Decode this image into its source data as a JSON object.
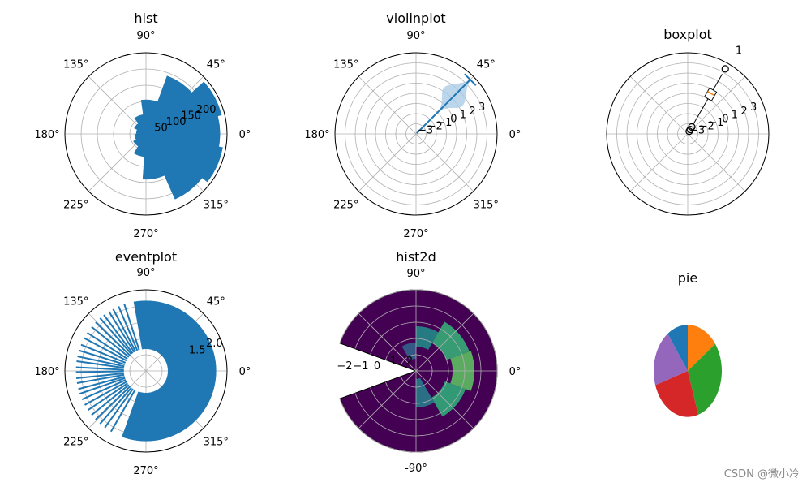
{
  "watermark": "CSDN @微小冷",
  "colors": {
    "blue": "#1f77b4",
    "orange": "#ff7f0e",
    "green": "#2ca02c",
    "red": "#d62728",
    "purple": "#9467bd",
    "grid": "#b0b0b0",
    "violin_fill": "#a6c8e6",
    "hist2d_bg": "#440154"
  },
  "angle_labels": [
    "0°",
    "45°",
    "90°",
    "135°",
    "180°",
    "225°",
    "270°",
    "315°"
  ],
  "chart_data": [
    {
      "type": "bar",
      "title": "hist",
      "radial_ticks": [
        "50",
        "100",
        "150",
        "200"
      ],
      "rlim": [
        0,
        250
      ],
      "bin_width_deg": 28,
      "bars": [
        {
          "angle_deg": 0,
          "value": 228
        },
        {
          "angle_deg": 28,
          "value": 240
        },
        {
          "angle_deg": 56,
          "value": 190
        },
        {
          "angle_deg": 84,
          "value": 105
        },
        {
          "angle_deg": 112,
          "value": 60
        },
        {
          "angle_deg": 140,
          "value": 40
        },
        {
          "angle_deg": 168,
          "value": 30
        },
        {
          "angle_deg": 196,
          "value": 35
        },
        {
          "angle_deg": 224,
          "value": 45
        },
        {
          "angle_deg": 252,
          "value": 70
        },
        {
          "angle_deg": 280,
          "value": 140
        },
        {
          "angle_deg": 308,
          "value": 220
        },
        {
          "angle_deg": 336,
          "value": 240
        }
      ]
    },
    {
      "type": "violin",
      "title": "violinplot",
      "radial_ticks": [
        "−3",
        "−2",
        "−1",
        "0",
        "1",
        "2",
        "3"
      ],
      "rlim": [
        -4,
        4
      ],
      "position_deg": 45,
      "min": -3.9,
      "max": 3.6,
      "mode": 1.2,
      "spread": 0.9
    },
    {
      "type": "box",
      "title": "boxplot",
      "radial_ticks": [
        "−3",
        "−2",
        "−1",
        "0",
        "1",
        "2",
        "3"
      ],
      "rlim": [
        -4,
        4
      ],
      "position_label": "1",
      "position_deg": 60,
      "whisker_low": -3.0,
      "q1": 0.0,
      "median": 0.6,
      "q3": 1.0,
      "whisker_high": 2.8,
      "outliers_high": [
        3.4
      ],
      "outliers_low": [
        -3.2,
        -3.5,
        -3.7
      ]
    },
    {
      "type": "event",
      "title": "eventplot",
      "radial_ticks": [
        "1.5",
        "2.0"
      ],
      "rlim": [
        0,
        2.2
      ],
      "r_inner": 0.6,
      "r_outer": 1.9,
      "dense_start_deg": -110,
      "dense_end_deg": 100,
      "sparse_events_deg": [
        108,
        113,
        118,
        122,
        127,
        131,
        136,
        141,
        147,
        152,
        158,
        163,
        168,
        172,
        177,
        181,
        186,
        190,
        195,
        199,
        204,
        209,
        214,
        219,
        224,
        229,
        234,
        240
      ]
    },
    {
      "type": "heatmap",
      "title": "hist2d",
      "radial_ticks": [
        "−2",
        "−1",
        "0",
        "1",
        "2"
      ],
      "rlim": [
        -3,
        3
      ],
      "theta_labels": [
        "0°",
        "90°",
        "-90°"
      ],
      "theta_range_deg": [
        -180,
        180
      ],
      "missing_wedge_deg": [
        160,
        200
      ]
    },
    {
      "type": "pie",
      "title": "pie",
      "slices": [
        {
          "value": 15,
          "color": "#ff7f0e"
        },
        {
          "value": 30,
          "color": "#2ca02c"
        },
        {
          "value": 25,
          "color": "#d62728"
        },
        {
          "value": 20,
          "color": "#9467bd"
        },
        {
          "value": 10,
          "color": "#1f77b4"
        }
      ]
    }
  ]
}
